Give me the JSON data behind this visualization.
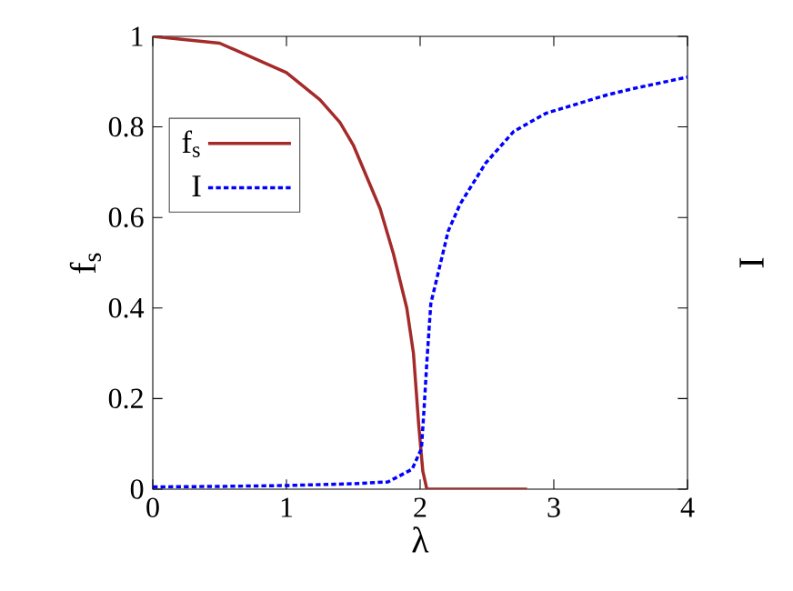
{
  "chart_data": {
    "type": "line",
    "xlabel": "λ",
    "ylabel": "f$_{s}$",
    "y2label": "I",
    "xlim": [
      0,
      4
    ],
    "ylim": [
      0,
      1
    ],
    "xticks": [
      0,
      1,
      2,
      3,
      4
    ],
    "yticks": [
      0,
      0.2,
      0.4,
      0.6,
      0.8,
      1
    ],
    "grid": false,
    "legend": "top left",
    "marker": "none",
    "series": [
      {
        "name": "f$_{s}$",
        "color": "#a52a2a",
        "line_style": "solid",
        "x": [
          0,
          0.5,
          1.0,
          1.25,
          1.4,
          1.5,
          1.7,
          1.8,
          1.9,
          1.95,
          1.99,
          2.02,
          2.05,
          2.8
        ],
        "values": [
          1.0,
          0.985,
          0.92,
          0.86,
          0.81,
          0.76,
          0.62,
          0.52,
          0.4,
          0.3,
          0.14,
          0.04,
          0,
          0
        ]
      },
      {
        "name": "I",
        "color": "#0000ff",
        "line_style": "dotted",
        "x": [
          0,
          0.5,
          1.0,
          1.5,
          1.76,
          1.94,
          2.01,
          2.03,
          2.05,
          2.08,
          2.21,
          2.3,
          2.49,
          2.7,
          2.94,
          3.39,
          3.6,
          4.0
        ],
        "values": [
          0.005,
          0.006,
          0.008,
          0.012,
          0.016,
          0.044,
          0.09,
          0.18,
          0.28,
          0.41,
          0.57,
          0.63,
          0.72,
          0.79,
          0.83,
          0.87,
          0.885,
          0.91
        ]
      }
    ]
  }
}
